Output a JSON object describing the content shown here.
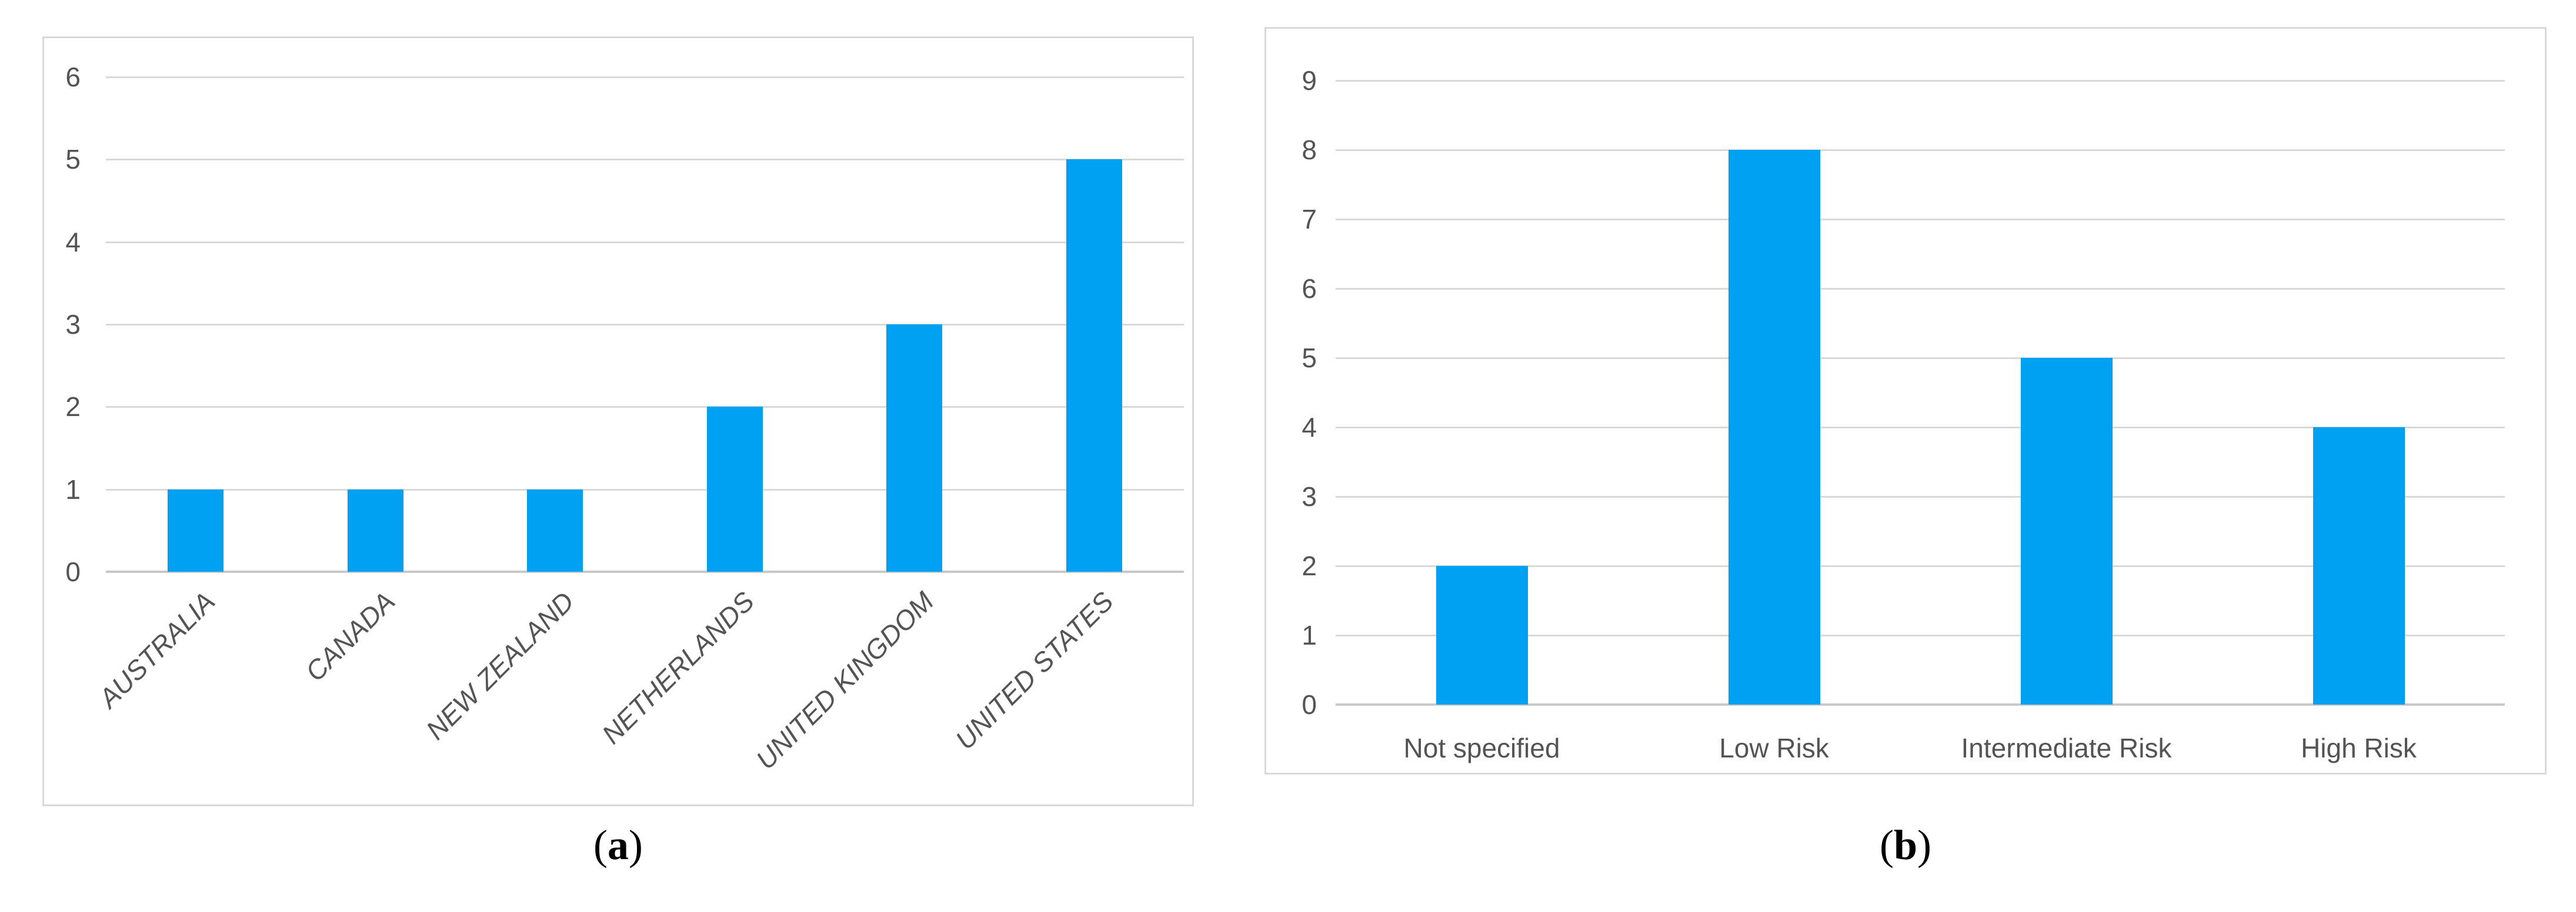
{
  "figure": {
    "background": "#FFFFFF",
    "captions": {
      "a": {
        "open": "(",
        "letter": "a",
        "close": ")",
        "text": "(a)"
      },
      "b": {
        "open": "(",
        "letter": "b",
        "close": ")",
        "text": "(b)"
      }
    }
  },
  "style": {
    "bar_color": "#00A1F3",
    "gridline_color": "#D9D9D9",
    "axis_line_color": "#C9C9C9",
    "tick_label_color": "#545454",
    "panel_border_color": "#D9D9D9"
  },
  "chart_data": [
    {
      "type": "bar",
      "title": "",
      "categories": [
        "AUSTRALIA",
        "CANADA",
        "NEW ZEALAND",
        "NETHERLANDS",
        "UNITED KINGDOM",
        "UNITED STATES"
      ],
      "values": [
        1,
        1,
        1,
        2,
        3,
        5
      ],
      "xlabel": "",
      "ylabel": "",
      "ylim": [
        0,
        6
      ],
      "yticks": [
        0,
        1,
        2,
        3,
        4,
        5,
        6
      ],
      "grid": true,
      "legend": false,
      "x_label_rotation_deg": -45,
      "x_label_style": "italic"
    },
    {
      "type": "bar",
      "title": "",
      "categories": [
        "Not specified",
        "Low Risk",
        "Intermediate Risk",
        "High Risk"
      ],
      "values": [
        2,
        8,
        5,
        4
      ],
      "xlabel": "",
      "ylabel": "",
      "ylim": [
        0,
        9
      ],
      "yticks": [
        0,
        1,
        2,
        3,
        4,
        5,
        6,
        7,
        8,
        9
      ],
      "grid": true,
      "legend": false,
      "x_label_rotation_deg": 0,
      "x_label_style": "normal"
    }
  ]
}
